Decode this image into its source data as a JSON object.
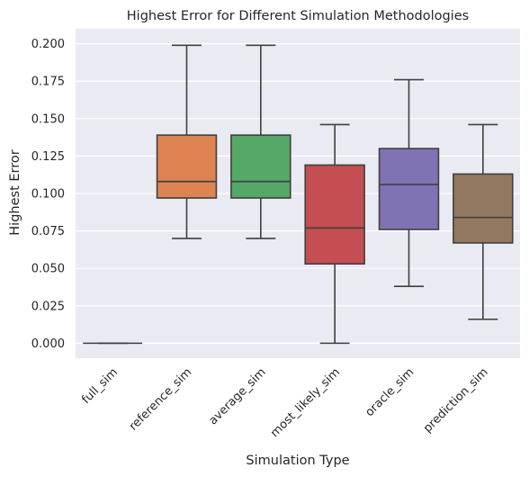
{
  "chart_data": {
    "type": "box",
    "title": "Highest Error for Different Simulation Methodologies",
    "xlabel": "Simulation Type",
    "ylabel": "Highest Error",
    "ylim": [
      -0.01,
      0.21
    ],
    "yticks": [
      "0.000",
      "0.025",
      "0.050",
      "0.075",
      "0.100",
      "0.125",
      "0.150",
      "0.175",
      "0.200"
    ],
    "grid": true,
    "categories": [
      "full_sim",
      "reference_sim",
      "average_sim",
      "most_likely_sim",
      "oracle_sim",
      "prediction_sim"
    ],
    "series": [
      {
        "category": "full_sim",
        "min": 0.0,
        "q1": 0.0,
        "median": 0.0,
        "q3": 0.0,
        "max": 0.0,
        "color": "#4c72b0"
      },
      {
        "category": "reference_sim",
        "min": 0.07,
        "q1": 0.097,
        "median": 0.108,
        "q3": 0.139,
        "max": 0.199,
        "color": "#dd8452"
      },
      {
        "category": "average_sim",
        "min": 0.07,
        "q1": 0.097,
        "median": 0.108,
        "q3": 0.139,
        "max": 0.199,
        "color": "#55a868"
      },
      {
        "category": "most_likely_sim",
        "min": 0.0,
        "q1": 0.053,
        "median": 0.077,
        "q3": 0.119,
        "max": 0.146,
        "color": "#c44e52"
      },
      {
        "category": "oracle_sim",
        "min": 0.038,
        "q1": 0.076,
        "median": 0.106,
        "q3": 0.13,
        "max": 0.176,
        "color": "#8172b3"
      },
      {
        "category": "prediction_sim",
        "min": 0.016,
        "q1": 0.067,
        "median": 0.084,
        "q3": 0.113,
        "max": 0.146,
        "color": "#937860"
      }
    ],
    "colors": {
      "plot_background": "#eaeaf2",
      "grid": "#ffffff",
      "line": "#3f3f3f"
    }
  }
}
